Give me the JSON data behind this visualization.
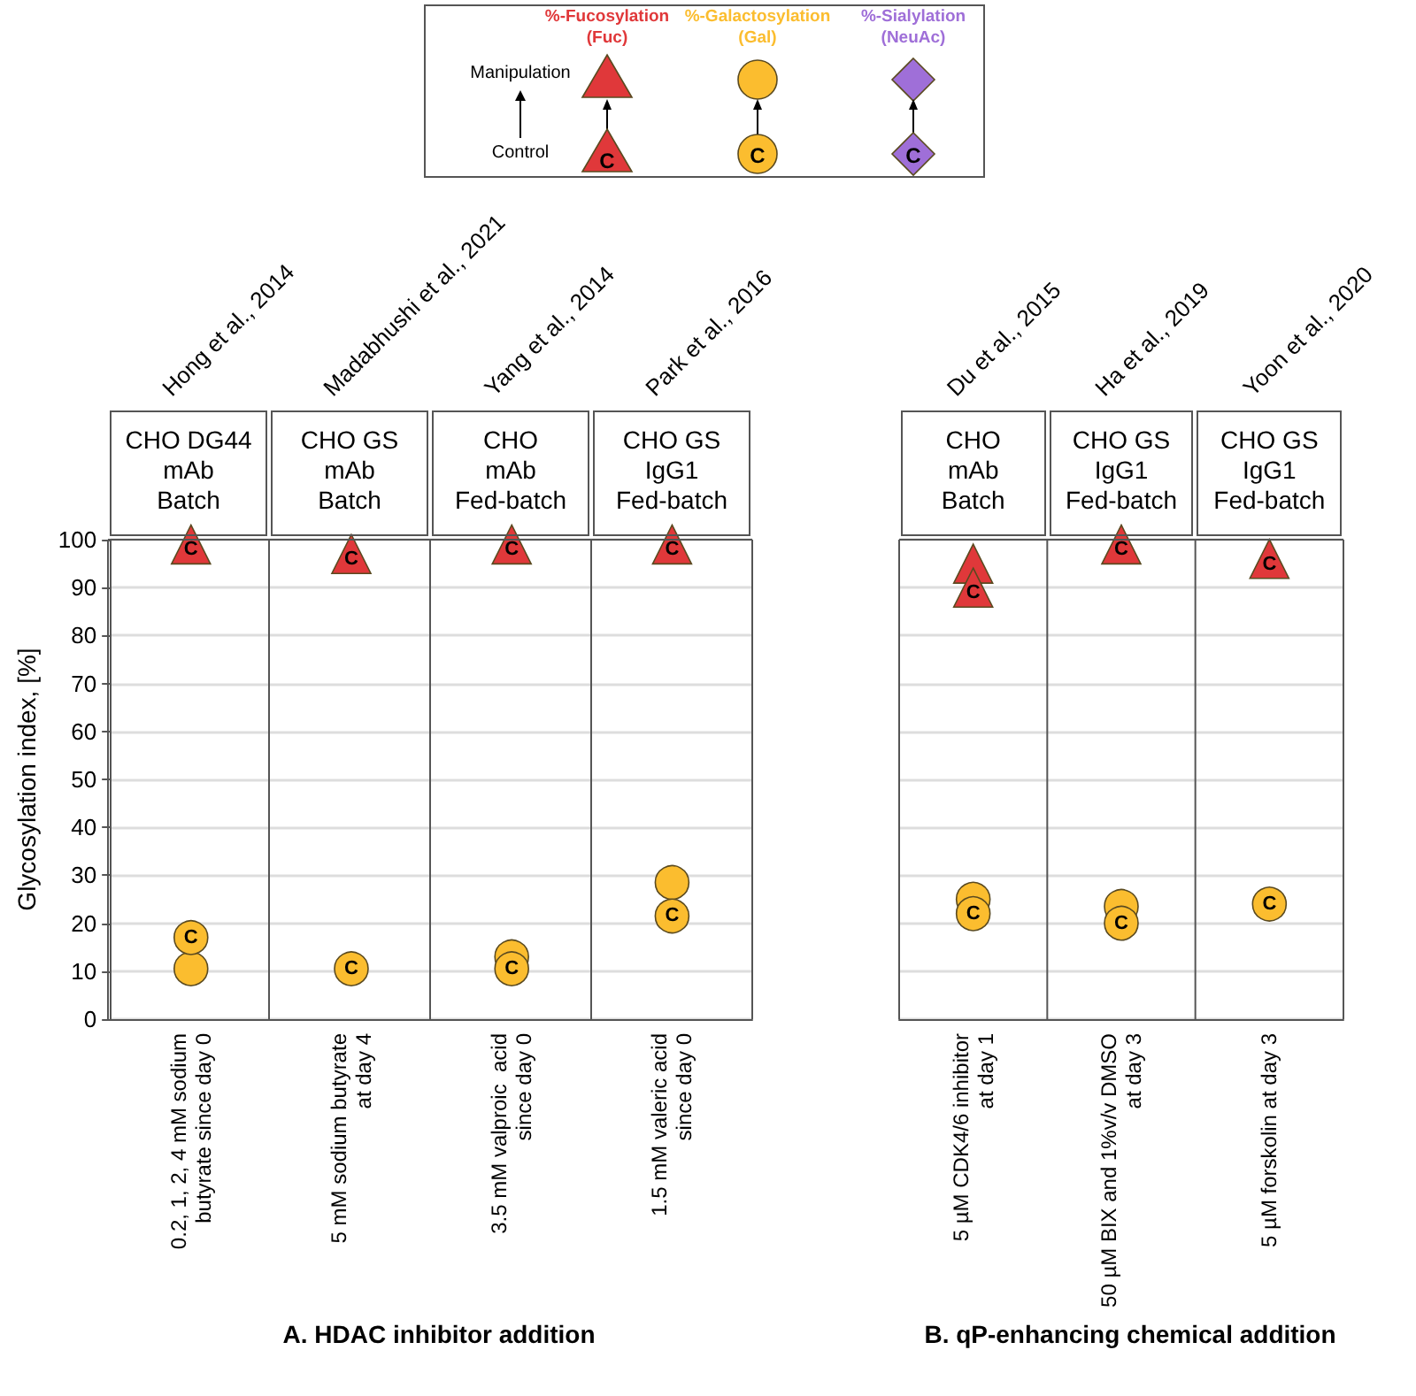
{
  "chart_data": [
    {
      "type": "scatter",
      "title": "A. HDAC inhibitor addition",
      "ylabel": "Glycosylation index, [%]",
      "categories": [
        "0.2, 1, 2, 4 mM sodium\nbutyrate since day 0",
        "5 mM sodium butyrate\nat day 4",
        "3.5 mM valproic  acid\nsince day 0",
        "1.5 mM valeric acid\nsince day 0"
      ],
      "series": [
        {
          "name": "%-Fucosylation\n(Fuc)",
          "color": "#e0383a",
          "marker": "triangle",
          "values": [
            99,
            97,
            99,
            99
          ]
        },
        {
          "color": "#e0383a",
          "marker": "triangle",
          "values": [
            null,
            null,
            null,
            null
          ]
        },
        {
          "color": "#fbbd2f",
          "marker": "circle",
          "values": [
            17,
            10.5,
            10.5,
            21.5
          ]
        },
        {
          "name": "%-Galactosylation\n(Gal)",
          "color": "#fbbd2f",
          "marker": "circle",
          "values": [
            10.5,
            null,
            13,
            28.5
          ]
        },
        {
          "color": "#9f6fd8",
          "marker": "diamond",
          "values": [
            null,
            null,
            null,
            null
          ]
        },
        {
          "name": "%-Sialylation\n(NeuAc)",
          "color": "#9f6fd8",
          "marker": "diamond",
          "values": [
            null,
            null,
            null,
            null
          ]
        }
      ],
      "ylim": [
        0,
        100
      ],
      "yticks": [
        0,
        10,
        20,
        30,
        40,
        50,
        60,
        70,
        80,
        90,
        100
      ],
      "grid": "y",
      "legend": "top",
      "annotations": [
        "Hong et al., 2014",
        "CHO DG44\nmAb\nBatch",
        "Madabhushi et al., 2021",
        "CHO GS\nmAb\nBatch",
        "Yang et al., 2014",
        "CHO\nmAb\nFed-batch",
        "Park et al., 2016",
        "CHO GS\nIgG1\nFed-batch",
        "Manipulation",
        "Control",
        "C"
      ]
    },
    {
      "type": "scatter",
      "title": "B. qP-enhancing chemical addition",
      "categories": [
        "5 µM CDK4/6 inhibitor\nat day 1",
        "50 µM BIX and 1%v/v DMSO\nat day 3",
        "5 µM forskolin at day 3"
      ],
      "series": [
        {
          "color": "#e0383a",
          "marker": "triangle",
          "values": [
            90,
            99,
            96
          ]
        },
        {
          "color": "#e0383a",
          "marker": "triangle",
          "values": [
            95,
            null,
            null
          ]
        },
        {
          "color": "#fbbd2f",
          "marker": "circle",
          "values": [
            22,
            20,
            24
          ]
        },
        {
          "color": "#fbbd2f",
          "marker": "circle",
          "values": [
            25,
            23.5,
            null
          ]
        }
      ],
      "ylim": [
        0,
        100
      ],
      "yticks": [
        0,
        10,
        20,
        30,
        40,
        50,
        60,
        70,
        80,
        90,
        100
      ],
      "grid": "y",
      "tick_labels": "x",
      "annotations": [
        "Du et al., 2015",
        "CHO\nmAb\nBatch",
        "Ha et al., 2019",
        "CHO GS\nIgG1\nFed-batch",
        "Yoon et al., 2020",
        "CHO GS\nIgG1\nFed-batch",
        "C"
      ]
    }
  ]
}
